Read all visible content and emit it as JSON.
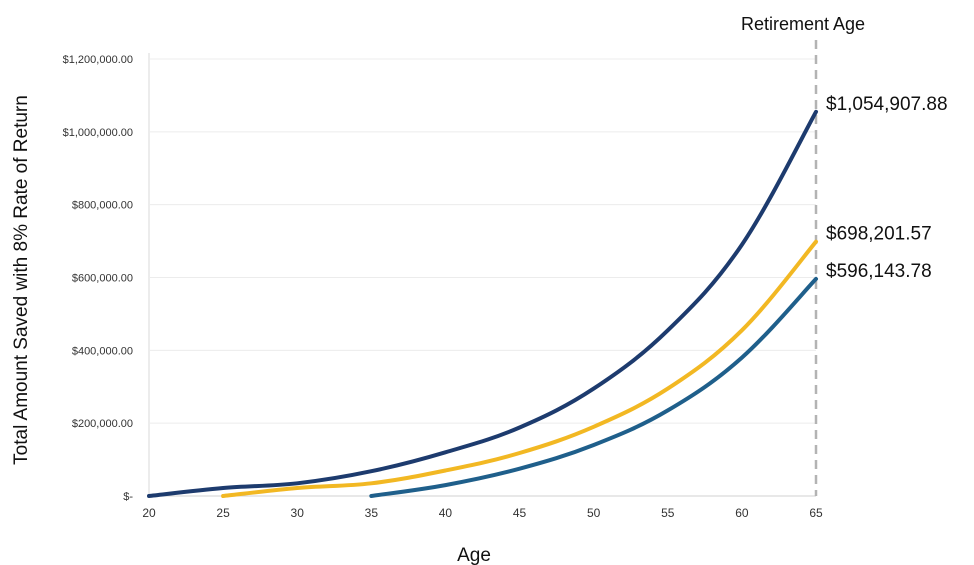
{
  "chart_data": {
    "type": "line",
    "title": "",
    "xlabel": "Age",
    "ylabel": "Total Amount Saved with 8% Rate of Return",
    "xlim": [
      20,
      65
    ],
    "ylim": [
      0,
      1200000
    ],
    "x_ticks": [
      "20",
      "25",
      "30",
      "35",
      "40",
      "45",
      "50",
      "55",
      "60",
      "65"
    ],
    "y_ticks": [
      "$-",
      "$200,000.00",
      "$400,000.00",
      "$600,000.00",
      "$800,000.00",
      "$1,000,000.00",
      "$1,200,000.00"
    ],
    "grid": true,
    "legend": "none",
    "reference_line": {
      "x": 65,
      "label": "Retirement Age",
      "color": "#b3b3b3"
    },
    "series": [
      {
        "color": "#1d3b6e",
        "x": [
          20,
          25,
          30,
          35,
          40,
          45,
          50,
          55,
          60,
          65
        ],
        "values": [
          0,
          22000,
          35000,
          68000,
          120000,
          188000,
          295000,
          455000,
          690000,
          1054907.88
        ],
        "end_label": "$1,054,907.88"
      },
      {
        "color": "#f2b823",
        "x": [
          25,
          30,
          35,
          40,
          45,
          50,
          55,
          60,
          65
        ],
        "values": [
          0,
          22000,
          35000,
          70000,
          118000,
          190000,
          295000,
          455000,
          698201.57
        ],
        "end_label": "$698,201.57"
      },
      {
        "color": "#1f5f8b",
        "x": [
          35,
          40,
          45,
          50,
          55,
          60,
          65
        ],
        "values": [
          0,
          30000,
          75000,
          140000,
          235000,
          380000,
          596143.78
        ],
        "end_label": "$596,143.78"
      }
    ]
  }
}
